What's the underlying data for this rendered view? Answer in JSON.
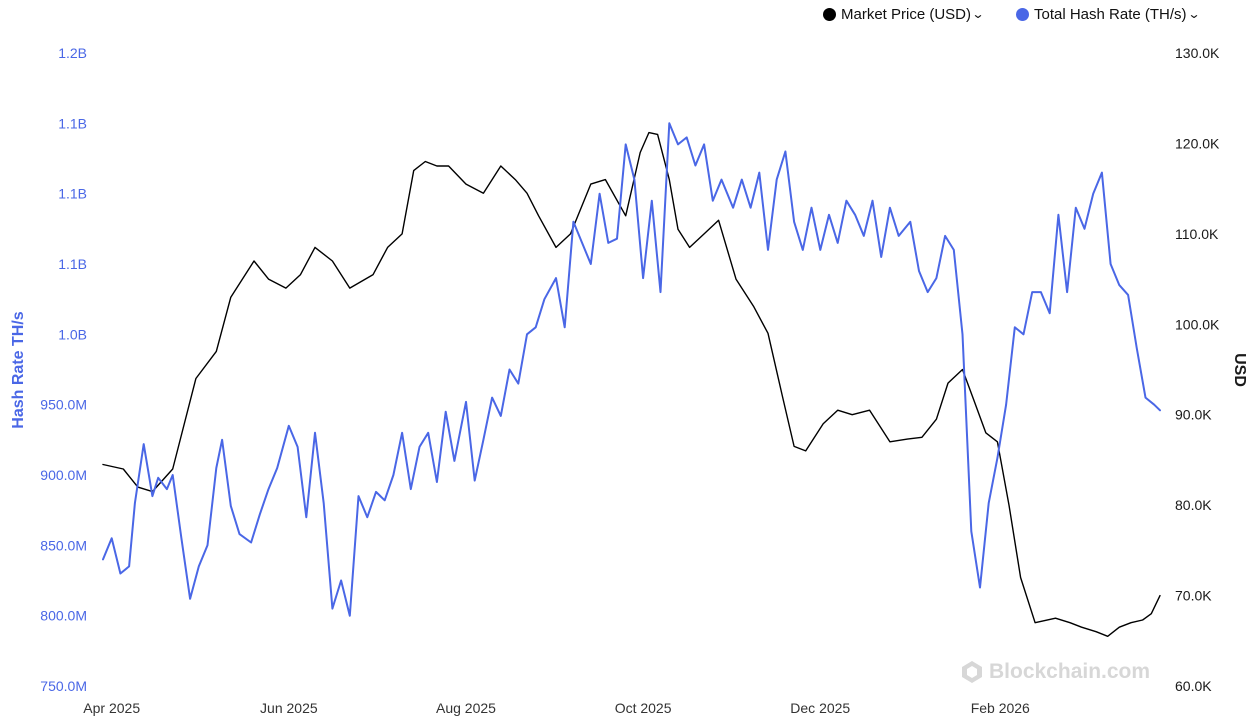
{
  "legend": {
    "items": [
      {
        "label": "Market Price (USD)",
        "color": "#000000",
        "icon": "chevron-down-icon"
      },
      {
        "label": "Total Hash Rate (TH/s)",
        "color": "#4a67e6",
        "icon": "chevron-down-icon"
      }
    ]
  },
  "watermark": {
    "text": "Blockchain.com",
    "icon": "blockchain-logo-icon"
  },
  "chart_data": {
    "type": "line",
    "x_ticks": [
      "Apr 2025",
      "Jun 2025",
      "Aug 2025",
      "Oct 2025",
      "Dec 2025",
      "Feb 2026"
    ],
    "x_range": [
      "2025-03-29",
      "2026-03-28"
    ],
    "left_axis": {
      "label": "Hash Rate TH/s",
      "ticks": [
        "750.0M",
        "800.0M",
        "850.0M",
        "900.0M",
        "950.0M",
        "1.0B",
        "1.1B",
        "1.1B",
        "1.1B",
        "1.2B"
      ],
      "range": [
        750000000,
        1200000000
      ],
      "color": "#4a67e6"
    },
    "right_axis": {
      "label": "USD",
      "ticks": [
        "60.0K",
        "70.0K",
        "80.0K",
        "90.0K",
        "100.0K",
        "110.0K",
        "120.0K",
        "130.0K"
      ],
      "range": [
        60000,
        130000
      ],
      "color": "#1a1a1a"
    },
    "grid": false,
    "legend_position": "top-right",
    "series": [
      {
        "name": "Market Price (USD)",
        "axis": "right",
        "color": "#000000",
        "x": [
          "2025-03-29",
          "2025-04-05",
          "2025-04-10",
          "2025-04-15",
          "2025-04-22",
          "2025-04-30",
          "2025-05-07",
          "2025-05-12",
          "2025-05-20",
          "2025-05-25",
          "2025-05-31",
          "2025-06-05",
          "2025-06-10",
          "2025-06-16",
          "2025-06-22",
          "2025-06-30",
          "2025-07-05",
          "2025-07-10",
          "2025-07-14",
          "2025-07-18",
          "2025-07-22",
          "2025-07-26",
          "2025-08-01",
          "2025-08-07",
          "2025-08-13",
          "2025-08-18",
          "2025-08-22",
          "2025-08-26",
          "2025-09-01",
          "2025-09-06",
          "2025-09-13",
          "2025-09-18",
          "2025-09-25",
          "2025-09-30",
          "2025-10-03",
          "2025-10-06",
          "2025-10-10",
          "2025-10-13",
          "2025-10-17",
          "2025-10-22",
          "2025-10-27",
          "2025-11-02",
          "2025-11-08",
          "2025-11-13",
          "2025-11-18",
          "2025-11-22",
          "2025-11-26",
          "2025-12-02",
          "2025-12-07",
          "2025-12-12",
          "2025-12-18",
          "2025-12-25",
          "2025-12-31",
          "2026-01-05",
          "2026-01-10",
          "2026-01-14",
          "2026-01-19",
          "2026-01-23",
          "2026-01-27",
          "2026-01-31",
          "2026-02-04",
          "2026-02-08",
          "2026-02-13",
          "2026-02-20",
          "2026-02-25",
          "2026-03-01",
          "2026-03-06",
          "2026-03-10",
          "2026-03-14",
          "2026-03-18",
          "2026-03-22",
          "2026-03-25",
          "2026-03-28"
        ],
        "y": [
          84500,
          84000,
          82000,
          81500,
          84000,
          94000,
          97000,
          103000,
          107000,
          105000,
          104000,
          105500,
          108500,
          107000,
          104000,
          105500,
          108500,
          110000,
          117000,
          118000,
          117500,
          117500,
          115500,
          114500,
          117500,
          116000,
          114500,
          112000,
          108500,
          110000,
          115500,
          116000,
          112000,
          119000,
          121200,
          121000,
          116000,
          110500,
          108500,
          110000,
          111500,
          105000,
          102000,
          99000,
          92000,
          86500,
          86000,
          89000,
          90500,
          90000,
          90500,
          87000,
          87300,
          87500,
          89500,
          93500,
          95000,
          91500,
          88000,
          87000,
          80000,
          72000,
          67000,
          67500,
          67000,
          66500,
          66000,
          65500,
          66500,
          67000,
          67300,
          68000,
          70000
        ]
      },
      {
        "name": "Total Hash Rate (TH/s)",
        "axis": "left",
        "color": "#4a67e6",
        "x": [
          "2025-03-29",
          "2025-04-01",
          "2025-04-04",
          "2025-04-07",
          "2025-04-09",
          "2025-04-12",
          "2025-04-15",
          "2025-04-17",
          "2025-04-20",
          "2025-04-22",
          "2025-04-25",
          "2025-04-28",
          "2025-05-01",
          "2025-05-04",
          "2025-05-07",
          "2025-05-09",
          "2025-05-12",
          "2025-05-15",
          "2025-05-19",
          "2025-05-22",
          "2025-05-25",
          "2025-05-28",
          "2025-06-01",
          "2025-06-04",
          "2025-06-07",
          "2025-06-10",
          "2025-06-13",
          "2025-06-16",
          "2025-06-19",
          "2025-06-22",
          "2025-06-25",
          "2025-06-28",
          "2025-07-01",
          "2025-07-04",
          "2025-07-07",
          "2025-07-10",
          "2025-07-13",
          "2025-07-16",
          "2025-07-19",
          "2025-07-22",
          "2025-07-25",
          "2025-07-28",
          "2025-08-01",
          "2025-08-04",
          "2025-08-07",
          "2025-08-10",
          "2025-08-13",
          "2025-08-16",
          "2025-08-19",
          "2025-08-22",
          "2025-08-25",
          "2025-08-28",
          "2025-09-01",
          "2025-09-04",
          "2025-09-07",
          "2025-09-10",
          "2025-09-13",
          "2025-09-16",
          "2025-09-19",
          "2025-09-22",
          "2025-09-25",
          "2025-09-28",
          "2025-10-01",
          "2025-10-04",
          "2025-10-07",
          "2025-10-10",
          "2025-10-13",
          "2025-10-16",
          "2025-10-19",
          "2025-10-22",
          "2025-10-25",
          "2025-10-28",
          "2025-11-01",
          "2025-11-04",
          "2025-11-07",
          "2025-11-10",
          "2025-11-13",
          "2025-11-16",
          "2025-11-19",
          "2025-11-22",
          "2025-11-25",
          "2025-11-28",
          "2025-12-01",
          "2025-12-04",
          "2025-12-07",
          "2025-12-10",
          "2025-12-13",
          "2025-12-16",
          "2025-12-19",
          "2025-12-22",
          "2025-12-25",
          "2025-12-28",
          "2026-01-01",
          "2026-01-04",
          "2026-01-07",
          "2026-01-10",
          "2026-01-13",
          "2026-01-16",
          "2026-01-19",
          "2026-01-22",
          "2026-01-25",
          "2026-01-28",
          "2026-01-31",
          "2026-02-03",
          "2026-02-06",
          "2026-02-09",
          "2026-02-12",
          "2026-02-15",
          "2026-02-18",
          "2026-02-21",
          "2026-02-24",
          "2026-02-27",
          "2026-03-02",
          "2026-03-05",
          "2026-03-08",
          "2026-03-11",
          "2026-03-14",
          "2026-03-17",
          "2026-03-20",
          "2026-03-23",
          "2026-03-26",
          "2026-03-28"
        ],
        "y": [
          840000000,
          855000000,
          830000000,
          835000000,
          880000000,
          922000000,
          885000000,
          898000000,
          890000000,
          900000000,
          855000000,
          812000000,
          835000000,
          850000000,
          905000000,
          925000000,
          878000000,
          858000000,
          852000000,
          872000000,
          890000000,
          905000000,
          935000000,
          920000000,
          870000000,
          930000000,
          880000000,
          805000000,
          825000000,
          800000000,
          885000000,
          870000000,
          888000000,
          882000000,
          900000000,
          930000000,
          890000000,
          920000000,
          930000000,
          895000000,
          945000000,
          910000000,
          952000000,
          896000000,
          925000000,
          955000000,
          942000000,
          975000000,
          965000000,
          1000000000,
          1005000000,
          1025000000,
          1040000000,
          1005000000,
          1080000000,
          1065000000,
          1050000000,
          1100000000,
          1065000000,
          1068000000,
          1135000000,
          1110000000,
          1040000000,
          1095000000,
          1030000000,
          1150000000,
          1135000000,
          1140000000,
          1120000000,
          1135000000,
          1095000000,
          1110000000,
          1090000000,
          1110000000,
          1090000000,
          1115000000,
          1060000000,
          1110000000,
          1130000000,
          1080000000,
          1060000000,
          1090000000,
          1060000000,
          1085000000,
          1065000000,
          1095000000,
          1085000000,
          1070000000,
          1095000000,
          1055000000,
          1090000000,
          1070000000,
          1080000000,
          1045000000,
          1030000000,
          1040000000,
          1070000000,
          1060000000,
          1000000000,
          860000000,
          820000000,
          880000000,
          912000000,
          950000000,
          1005000000,
          1000000000,
          1030000000,
          1030000000,
          1015000000,
          1085000000,
          1030000000,
          1090000000,
          1075000000,
          1100000000,
          1115000000,
          1050000000,
          1035000000,
          1028000000,
          990000000,
          955000000,
          950000000,
          946000000
        ]
      }
    ]
  }
}
